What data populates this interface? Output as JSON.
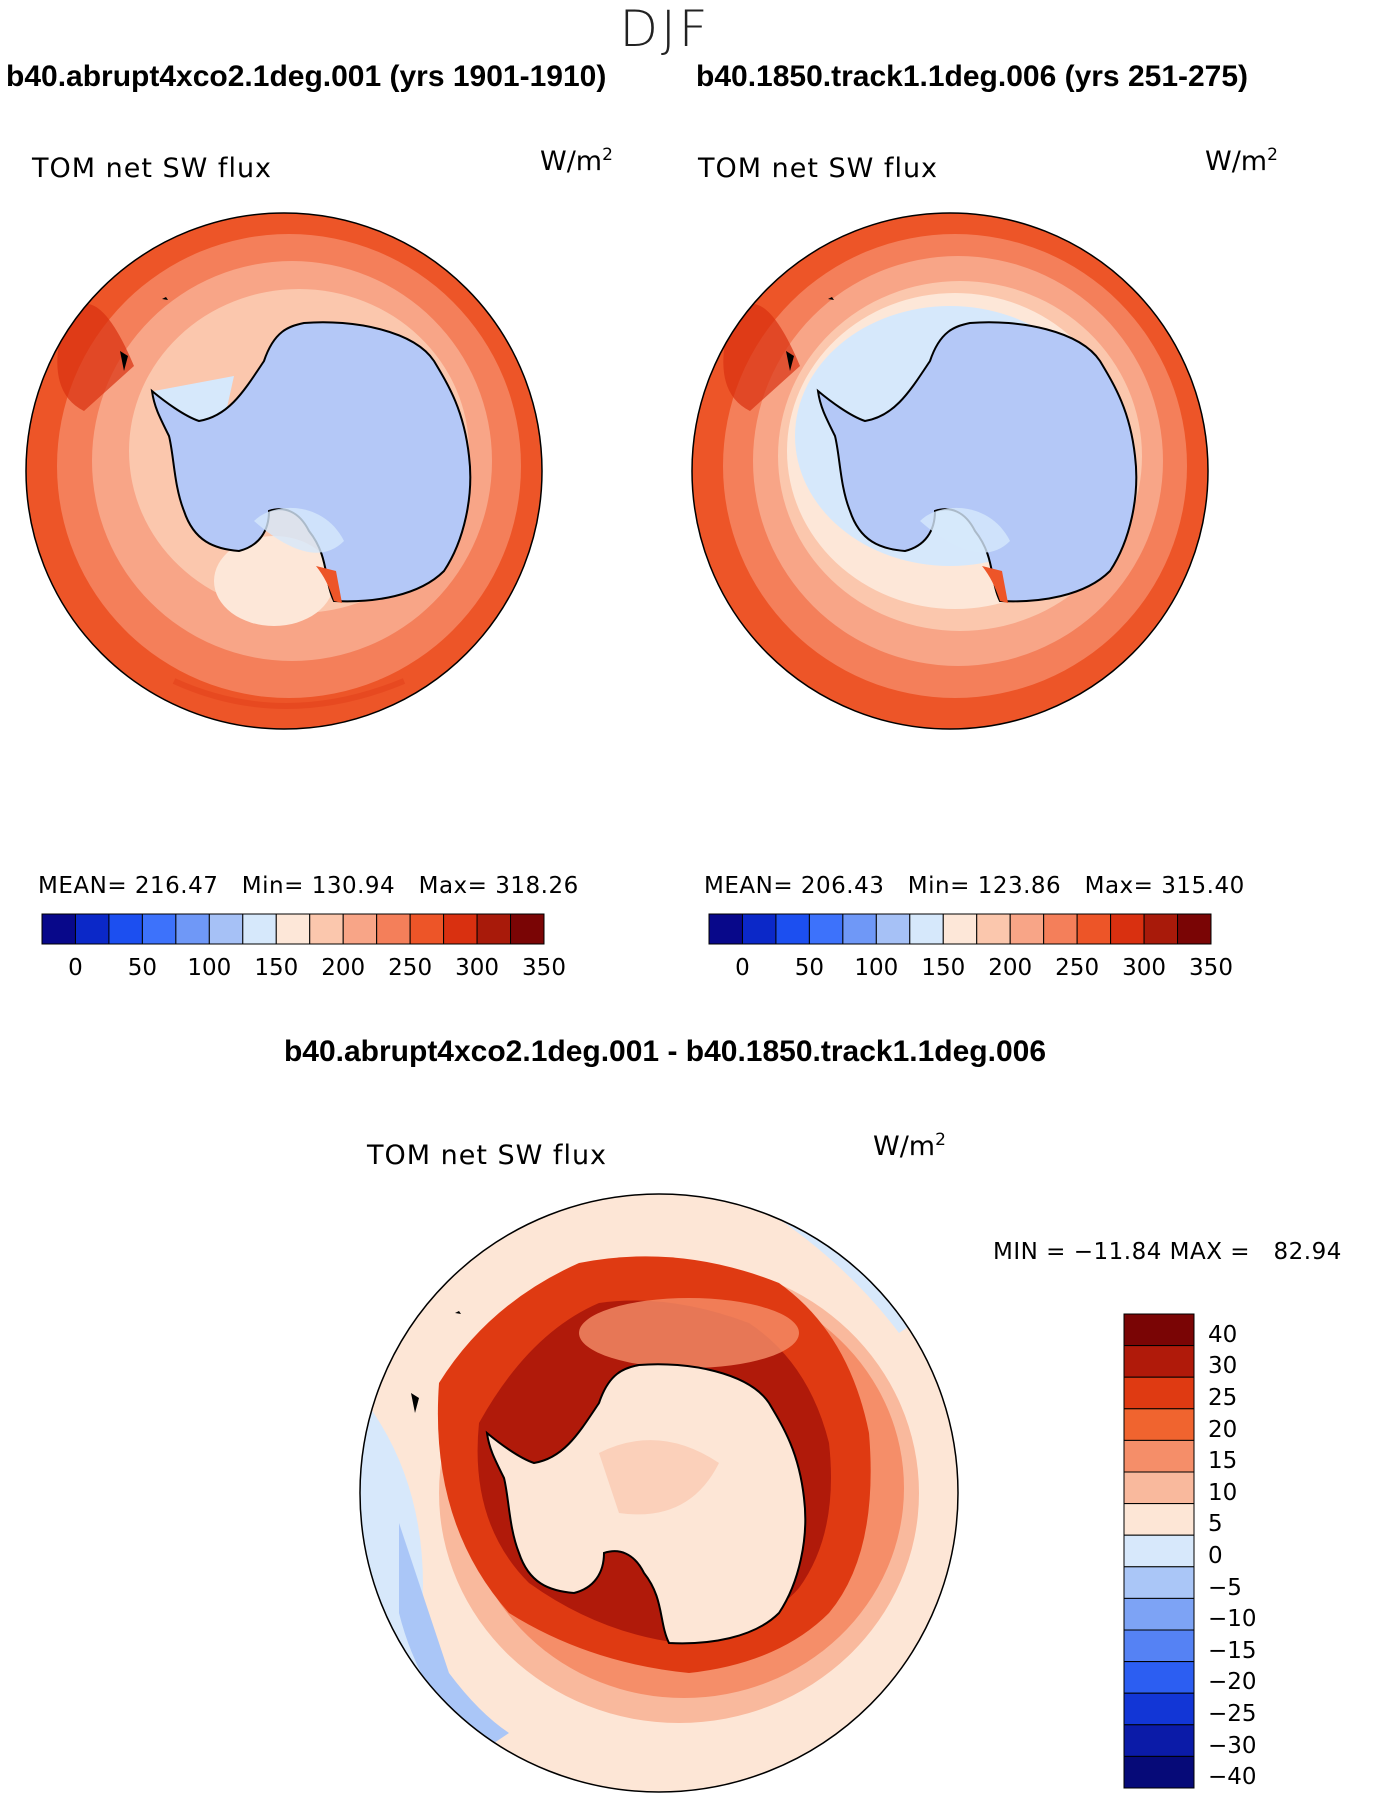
{
  "figure": {
    "season": "DJF",
    "diff_title": "b40.abrupt4xco2.1deg.001 - b40.1850.track1.1deg.006"
  },
  "panels": [
    {
      "case_title": "b40.abrupt4xco2.1deg.001 (yrs 1901-1910)",
      "variable": "TOM net SW flux",
      "units_base": "W/m",
      "units_exp": "2",
      "stats_line": "MEAN= 216.47   Min= 130.94   Max= 318.26",
      "mean": 216.47,
      "min": 130.94,
      "max": 318.26
    },
    {
      "case_title": "b40.1850.track1.1deg.006 (yrs 251-275)",
      "variable": "TOM net SW flux",
      "units_base": "W/m",
      "units_exp": "2",
      "stats_line": "MEAN= 206.43   Min= 123.86   Max= 315.40",
      "mean": 206.43,
      "min": 123.86,
      "max": 315.4
    }
  ],
  "diff_panel": {
    "variable": "TOM net SW flux",
    "units_base": "W/m",
    "units_exp": "2",
    "stats_line": "MIN = −11.84 MAX =   82.94",
    "min": -11.84,
    "max": 82.94
  },
  "colorbars": {
    "abs_colors": [
      "#08088a",
      "#0b28c8",
      "#1c4ff0",
      "#3d72fb",
      "#6f98f7",
      "#a6c1f6",
      "#d6e8fb",
      "#fde7d8",
      "#fbc7ad",
      "#f8a587",
      "#f47f5a",
      "#ed5528",
      "#d93010",
      "#a81a0a",
      "#7a0505"
    ],
    "abs_ticks": [
      "0",
      "50",
      "100",
      "150",
      "200",
      "250",
      "300",
      "350"
    ],
    "diff_colors": [
      "#7a0505",
      "#b01a0a",
      "#df3a12",
      "#f0642f",
      "#f58e69",
      "#f9b99d",
      "#fde6d6",
      "#d7e8fb",
      "#aac6f7",
      "#7da3f5",
      "#5582f4",
      "#2c5ef2",
      "#1236d6",
      "#0b1ba8",
      "#060a78"
    ],
    "diff_ticks": [
      "40",
      "30",
      "25",
      "20",
      "15",
      "10",
      "5",
      "0",
      "−5",
      "−10",
      "−15",
      "−20",
      "−25",
      "−30",
      "−40"
    ]
  }
}
